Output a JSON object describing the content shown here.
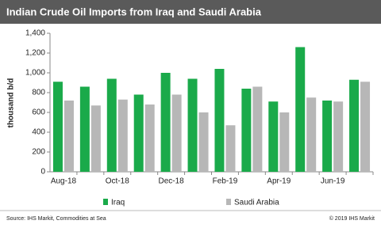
{
  "chart_data": {
    "type": "bar",
    "title": "Indian Crude Oil Imports from Iraq and Saudi Arabia",
    "y_label": "thousand b/d",
    "categories": [
      "Aug-18",
      null,
      "Oct-18",
      null,
      "Dec-18",
      null,
      "Feb-19",
      null,
      "Apr-19",
      null,
      "Jun-19",
      null
    ],
    "series": [
      {
        "name": "Iraq",
        "color": "#1aaa4a",
        "values": [
          910,
          860,
          940,
          780,
          1000,
          940,
          1040,
          840,
          710,
          1260,
          720,
          930
        ]
      },
      {
        "name": "Saudi Arabia",
        "color": "#b7b7b7",
        "values": [
          720,
          670,
          730,
          680,
          780,
          600,
          470,
          860,
          600,
          750,
          710,
          910
        ]
      }
    ],
    "ylim": [
      0,
      1400
    ],
    "yticks": [
      0,
      200,
      400,
      600,
      800,
      {
        "value": 1000,
        "label": "1,000"
      },
      {
        "value": 1200,
        "label": "1,200"
      },
      {
        "value": 1400,
        "label": "1,400"
      }
    ],
    "grid": false,
    "source": "Source:  IHS Markit,  Commodities at Sea",
    "copyright": "© 2019 IHS Markit"
  }
}
